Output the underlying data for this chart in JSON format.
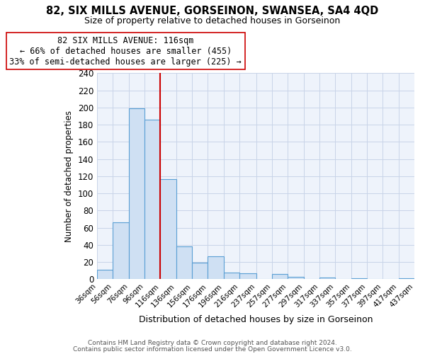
{
  "title": "82, SIX MILLS AVENUE, GORSEINON, SWANSEA, SA4 4QD",
  "subtitle": "Size of property relative to detached houses in Gorseinon",
  "xlabel": "Distribution of detached houses by size in Gorseinon",
  "ylabel": "Number of detached properties",
  "bar_color": "#cfe0f3",
  "bar_edge_color": "#5a9fd4",
  "bin_edges": [
    36,
    56,
    76,
    96,
    116,
    136,
    156,
    176,
    196,
    216,
    237,
    257,
    277,
    297,
    317,
    337,
    357,
    377,
    397,
    417,
    437
  ],
  "bar_heights": [
    11,
    66,
    199,
    186,
    117,
    38,
    19,
    27,
    8,
    7,
    0,
    6,
    3,
    0,
    2,
    0,
    1,
    0,
    0,
    1
  ],
  "vline_x": 116,
  "vline_color": "#cc0000",
  "annotation_line1": "82 SIX MILLS AVENUE: 116sqm",
  "annotation_line2": "← 66% of detached houses are smaller (455)",
  "annotation_line3": "33% of semi-detached houses are larger (225) →",
  "annotation_box_color": "#ffffff",
  "annotation_box_edge": "#cc0000",
  "ylim": [
    0,
    240
  ],
  "yticks": [
    0,
    20,
    40,
    60,
    80,
    100,
    120,
    140,
    160,
    180,
    200,
    220,
    240
  ],
  "tick_labels": [
    "36sqm",
    "56sqm",
    "76sqm",
    "96sqm",
    "116sqm",
    "136sqm",
    "156sqm",
    "176sqm",
    "196sqm",
    "216sqm",
    "237sqm",
    "257sqm",
    "277sqm",
    "297sqm",
    "317sqm",
    "337sqm",
    "357sqm",
    "377sqm",
    "397sqm",
    "417sqm",
    "437sqm"
  ],
  "footer1": "Contains HM Land Registry data © Crown copyright and database right 2024.",
  "footer2": "Contains public sector information licensed under the Open Government Licence v3.0.",
  "bg_color": "#eef3fb",
  "title_fontsize": 10.5,
  "subtitle_fontsize": 9,
  "ylabel_fontsize": 8.5,
  "xlabel_fontsize": 9
}
